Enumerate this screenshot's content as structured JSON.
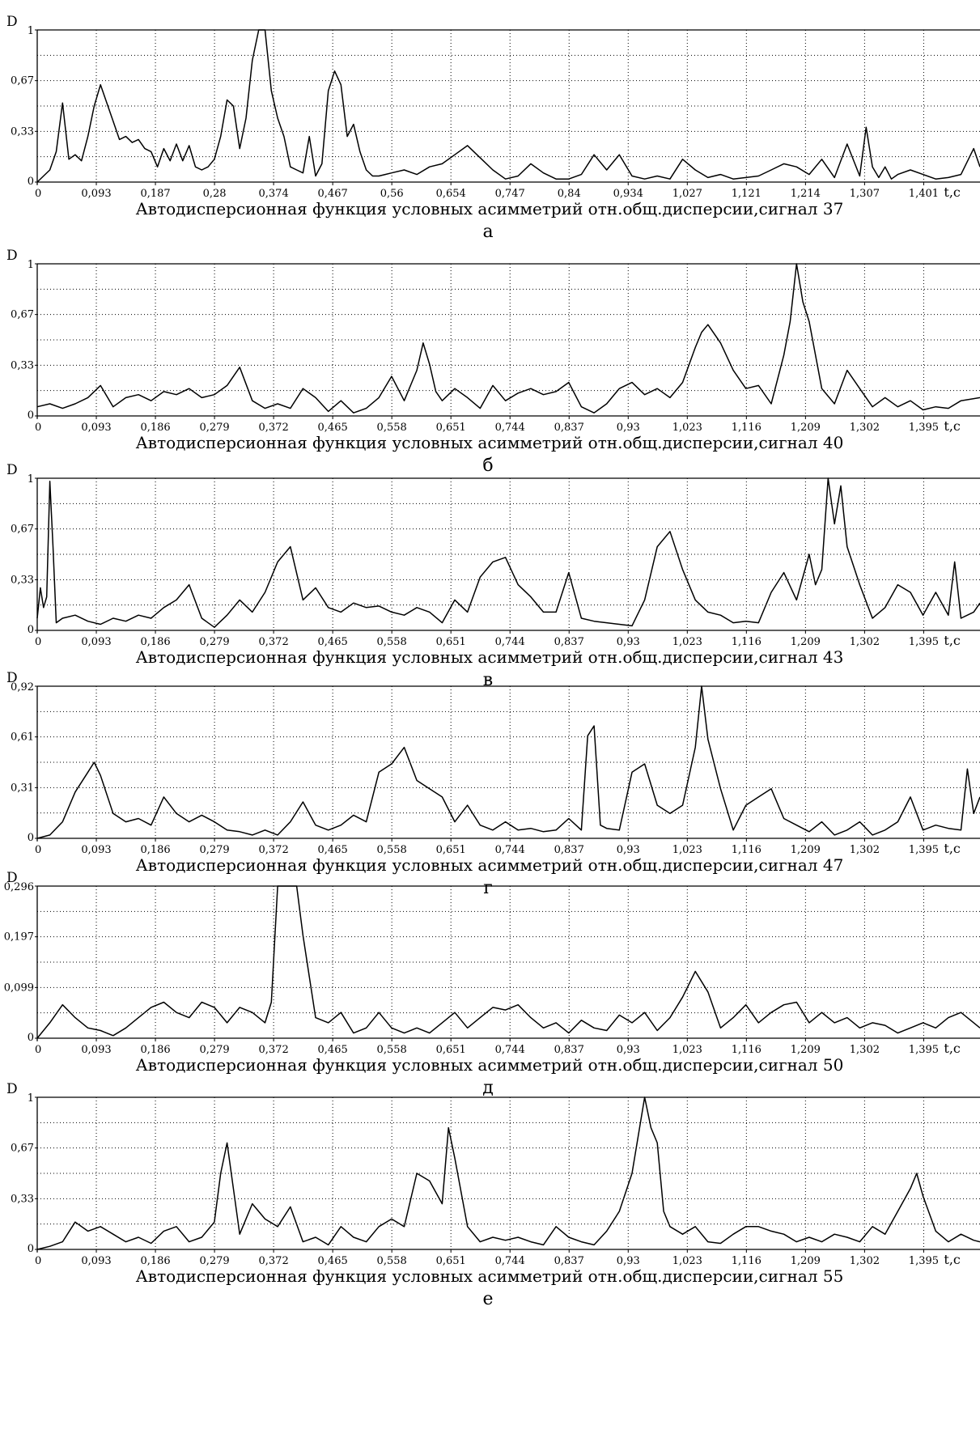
{
  "figure": {
    "background": "#ffffff",
    "line_color": "#000000",
    "grid_color": "#000000"
  },
  "chart_data": [
    {
      "type": "line",
      "ylabel": "D",
      "xlabel": "t,c",
      "caption": "Автодисперсионная функция условных асимметрий отн.общ.дисперсии,сигнал 37",
      "panel_label": "а",
      "xlim": [
        0,
        1.49
      ],
      "ylim": [
        0,
        1
      ],
      "xticks": [
        "0",
        "0,093",
        "0,187",
        "0,28",
        "0,374",
        "0,467",
        "0,56",
        "0,654",
        "0,747",
        "0,84",
        "0,934",
        "1,027",
        "1,121",
        "1,214",
        "1,307",
        "1,401"
      ],
      "yticks": [
        "0",
        "0,33",
        "0,67",
        "1"
      ],
      "grid": true,
      "x": [
        0,
        0.02,
        0.03,
        0.04,
        0.05,
        0.06,
        0.07,
        0.08,
        0.09,
        0.1,
        0.11,
        0.12,
        0.13,
        0.14,
        0.15,
        0.16,
        0.17,
        0.18,
        0.19,
        0.2,
        0.21,
        0.22,
        0.23,
        0.24,
        0.25,
        0.26,
        0.27,
        0.28,
        0.29,
        0.3,
        0.31,
        0.32,
        0.33,
        0.34,
        0.35,
        0.36,
        0.37,
        0.38,
        0.39,
        0.4,
        0.41,
        0.42,
        0.43,
        0.44,
        0.45,
        0.46,
        0.47,
        0.48,
        0.49,
        0.5,
        0.51,
        0.52,
        0.53,
        0.54,
        0.55,
        0.56,
        0.58,
        0.6,
        0.62,
        0.64,
        0.66,
        0.68,
        0.7,
        0.72,
        0.74,
        0.76,
        0.78,
        0.8,
        0.82,
        0.84,
        0.86,
        0.88,
        0.9,
        0.92,
        0.94,
        0.96,
        0.98,
        1.0,
        1.02,
        1.04,
        1.06,
        1.08,
        1.1,
        1.12,
        1.14,
        1.16,
        1.18,
        1.2,
        1.22,
        1.24,
        1.26,
        1.28,
        1.3,
        1.31,
        1.32,
        1.33,
        1.34,
        1.35,
        1.36,
        1.38,
        1.4,
        1.42,
        1.44,
        1.46,
        1.48,
        1.49
      ],
      "y": [
        0.0,
        0.08,
        0.2,
        0.52,
        0.15,
        0.18,
        0.14,
        0.3,
        0.5,
        0.64,
        0.52,
        0.4,
        0.28,
        0.3,
        0.26,
        0.28,
        0.22,
        0.2,
        0.1,
        0.22,
        0.14,
        0.25,
        0.14,
        0.24,
        0.1,
        0.08,
        0.1,
        0.15,
        0.3,
        0.54,
        0.5,
        0.22,
        0.42,
        0.8,
        1.0,
        1.0,
        0.6,
        0.42,
        0.3,
        0.1,
        0.08,
        0.06,
        0.3,
        0.04,
        0.12,
        0.6,
        0.73,
        0.64,
        0.3,
        0.38,
        0.2,
        0.08,
        0.04,
        0.04,
        0.05,
        0.06,
        0.08,
        0.05,
        0.1,
        0.12,
        0.18,
        0.24,
        0.16,
        0.08,
        0.02,
        0.04,
        0.12,
        0.06,
        0.02,
        0.02,
        0.05,
        0.18,
        0.08,
        0.18,
        0.04,
        0.02,
        0.04,
        0.02,
        0.15,
        0.08,
        0.03,
        0.05,
        0.02,
        0.03,
        0.04,
        0.08,
        0.12,
        0.1,
        0.05,
        0.15,
        0.03,
        0.25,
        0.04,
        0.36,
        0.1,
        0.03,
        0.1,
        0.02,
        0.05,
        0.08,
        0.05,
        0.02,
        0.03,
        0.05,
        0.22,
        0.1
      ]
    },
    {
      "type": "line",
      "ylabel": "D",
      "xlabel": "t,c",
      "caption": "Автодисперсионная функция условных асимметрий отн.общ.дисперсии,сигнал 40",
      "panel_label": "б",
      "xlim": [
        0,
        1.49
      ],
      "ylim": [
        0,
        1
      ],
      "xticks": [
        "0",
        "0,093",
        "0,186",
        "0,279",
        "0,372",
        "0,465",
        "0,558",
        "0,651",
        "0,744",
        "0,837",
        "0,93",
        "1,023",
        "1,116",
        "1,209",
        "1,302",
        "1,395"
      ],
      "yticks": [
        "0",
        "0,33",
        "0,67",
        "1"
      ],
      "grid": true,
      "x": [
        0,
        0.02,
        0.04,
        0.06,
        0.08,
        0.1,
        0.12,
        0.14,
        0.16,
        0.18,
        0.2,
        0.22,
        0.24,
        0.26,
        0.28,
        0.3,
        0.32,
        0.34,
        0.36,
        0.38,
        0.4,
        0.42,
        0.44,
        0.46,
        0.48,
        0.5,
        0.52,
        0.54,
        0.56,
        0.58,
        0.6,
        0.61,
        0.62,
        0.63,
        0.64,
        0.66,
        0.68,
        0.7,
        0.72,
        0.74,
        0.76,
        0.78,
        0.8,
        0.82,
        0.84,
        0.86,
        0.88,
        0.9,
        0.92,
        0.94,
        0.96,
        0.98,
        1.0,
        1.02,
        1.04,
        1.05,
        1.06,
        1.08,
        1.1,
        1.12,
        1.14,
        1.16,
        1.18,
        1.19,
        1.2,
        1.21,
        1.22,
        1.24,
        1.26,
        1.28,
        1.3,
        1.32,
        1.34,
        1.36,
        1.38,
        1.4,
        1.42,
        1.44,
        1.46,
        1.49
      ],
      "y": [
        0.06,
        0.08,
        0.05,
        0.08,
        0.12,
        0.2,
        0.06,
        0.12,
        0.14,
        0.1,
        0.16,
        0.14,
        0.18,
        0.12,
        0.14,
        0.2,
        0.32,
        0.1,
        0.05,
        0.08,
        0.05,
        0.18,
        0.12,
        0.03,
        0.1,
        0.02,
        0.05,
        0.12,
        0.26,
        0.1,
        0.3,
        0.48,
        0.34,
        0.16,
        0.1,
        0.18,
        0.12,
        0.05,
        0.2,
        0.1,
        0.15,
        0.18,
        0.14,
        0.16,
        0.22,
        0.06,
        0.02,
        0.08,
        0.18,
        0.22,
        0.14,
        0.18,
        0.12,
        0.22,
        0.45,
        0.55,
        0.6,
        0.48,
        0.3,
        0.18,
        0.2,
        0.08,
        0.4,
        0.62,
        1.0,
        0.75,
        0.62,
        0.18,
        0.08,
        0.3,
        0.18,
        0.06,
        0.12,
        0.06,
        0.1,
        0.04,
        0.06,
        0.05,
        0.1,
        0.12
      ]
    },
    {
      "type": "line",
      "ylabel": "D",
      "xlabel": "t,c",
      "caption": "Автодисперсионная функция условных асимметрий отн.общ.дисперсии,сигнал 43",
      "panel_label": "в",
      "xlim": [
        0,
        1.49
      ],
      "ylim": [
        0,
        1
      ],
      "xticks": [
        "0",
        "0,093",
        "0,186",
        "0,279",
        "0,372",
        "0,465",
        "0,558",
        "0,651",
        "0,744",
        "0,837",
        "0,93",
        "1,023",
        "1,116",
        "1,209",
        "1,302",
        "1,395"
      ],
      "yticks": [
        "0",
        "0,33",
        "0,67",
        "1"
      ],
      "grid": true,
      "x": [
        0,
        0.005,
        0.01,
        0.015,
        0.02,
        0.025,
        0.03,
        0.04,
        0.06,
        0.08,
        0.1,
        0.12,
        0.14,
        0.16,
        0.18,
        0.2,
        0.22,
        0.24,
        0.26,
        0.28,
        0.3,
        0.32,
        0.34,
        0.36,
        0.38,
        0.4,
        0.42,
        0.44,
        0.46,
        0.48,
        0.5,
        0.52,
        0.54,
        0.56,
        0.58,
        0.6,
        0.62,
        0.64,
        0.66,
        0.68,
        0.7,
        0.72,
        0.74,
        0.76,
        0.78,
        0.8,
        0.82,
        0.84,
        0.86,
        0.88,
        0.9,
        0.92,
        0.94,
        0.96,
        0.98,
        1.0,
        1.02,
        1.04,
        1.06,
        1.08,
        1.1,
        1.12,
        1.14,
        1.16,
        1.18,
        1.2,
        1.22,
        1.23,
        1.24,
        1.25,
        1.26,
        1.27,
        1.28,
        1.3,
        1.32,
        1.34,
        1.36,
        1.38,
        1.4,
        1.42,
        1.44,
        1.45,
        1.46,
        1.48,
        1.49
      ],
      "y": [
        0.08,
        0.28,
        0.15,
        0.22,
        0.98,
        0.55,
        0.05,
        0.08,
        0.1,
        0.06,
        0.04,
        0.08,
        0.06,
        0.1,
        0.08,
        0.15,
        0.2,
        0.3,
        0.08,
        0.02,
        0.1,
        0.2,
        0.12,
        0.25,
        0.45,
        0.55,
        0.2,
        0.28,
        0.15,
        0.12,
        0.18,
        0.15,
        0.16,
        0.12,
        0.1,
        0.15,
        0.12,
        0.05,
        0.2,
        0.12,
        0.35,
        0.45,
        0.48,
        0.3,
        0.22,
        0.12,
        0.12,
        0.38,
        0.08,
        0.06,
        0.05,
        0.04,
        0.03,
        0.2,
        0.55,
        0.65,
        0.4,
        0.2,
        0.12,
        0.1,
        0.05,
        0.06,
        0.05,
        0.25,
        0.38,
        0.2,
        0.5,
        0.3,
        0.4,
        1.0,
        0.7,
        0.95,
        0.55,
        0.3,
        0.08,
        0.15,
        0.3,
        0.25,
        0.1,
        0.25,
        0.1,
        0.45,
        0.08,
        0.12,
        0.18
      ]
    },
    {
      "type": "line",
      "ylabel": "D",
      "xlabel": "t,c",
      "caption": "Автодисперсионная функция условных асимметрий отн.общ.дисперсии,сигнал 47",
      "panel_label": "г",
      "xlim": [
        0,
        1.49
      ],
      "ylim": [
        0,
        0.92
      ],
      "xticks": [
        "0",
        "0,093",
        "0,186",
        "0,279",
        "0,372",
        "0,465",
        "0,558",
        "0,651",
        "0,744",
        "0,837",
        "0,93",
        "1,023",
        "1,116",
        "1,209",
        "1,302",
        "1,395"
      ],
      "yticks": [
        "0",
        "0,31",
        "0,61",
        "0,92"
      ],
      "grid": true,
      "x": [
        0,
        0.02,
        0.04,
        0.06,
        0.08,
        0.09,
        0.1,
        0.12,
        0.14,
        0.16,
        0.18,
        0.2,
        0.22,
        0.24,
        0.26,
        0.28,
        0.3,
        0.32,
        0.34,
        0.36,
        0.38,
        0.4,
        0.42,
        0.44,
        0.46,
        0.48,
        0.5,
        0.52,
        0.54,
        0.56,
        0.58,
        0.6,
        0.62,
        0.64,
        0.66,
        0.68,
        0.7,
        0.72,
        0.74,
        0.76,
        0.78,
        0.8,
        0.82,
        0.84,
        0.86,
        0.87,
        0.88,
        0.89,
        0.9,
        0.92,
        0.94,
        0.96,
        0.98,
        1.0,
        1.02,
        1.04,
        1.05,
        1.06,
        1.08,
        1.1,
        1.12,
        1.14,
        1.16,
        1.18,
        1.2,
        1.22,
        1.24,
        1.26,
        1.28,
        1.3,
        1.32,
        1.34,
        1.36,
        1.38,
        1.4,
        1.42,
        1.44,
        1.46,
        1.47,
        1.48,
        1.49
      ],
      "y": [
        0.0,
        0.02,
        0.1,
        0.28,
        0.4,
        0.46,
        0.38,
        0.15,
        0.1,
        0.12,
        0.08,
        0.25,
        0.15,
        0.1,
        0.14,
        0.1,
        0.05,
        0.04,
        0.02,
        0.05,
        0.02,
        0.1,
        0.22,
        0.08,
        0.05,
        0.08,
        0.14,
        0.1,
        0.4,
        0.45,
        0.55,
        0.35,
        0.3,
        0.25,
        0.1,
        0.2,
        0.08,
        0.05,
        0.1,
        0.05,
        0.06,
        0.04,
        0.05,
        0.12,
        0.05,
        0.62,
        0.68,
        0.08,
        0.06,
        0.05,
        0.4,
        0.45,
        0.2,
        0.15,
        0.2,
        0.55,
        0.92,
        0.6,
        0.3,
        0.05,
        0.2,
        0.25,
        0.3,
        0.12,
        0.08,
        0.04,
        0.1,
        0.02,
        0.05,
        0.1,
        0.02,
        0.05,
        0.1,
        0.25,
        0.05,
        0.08,
        0.06,
        0.05,
        0.42,
        0.15,
        0.25
      ]
    },
    {
      "type": "line",
      "ylabel": "D",
      "xlabel": "t,c",
      "caption": "Автодисперсионная функция условных асимметрий отн.общ.дисперсии,сигнал 50",
      "panel_label": "д",
      "xlim": [
        0,
        1.49
      ],
      "ylim": [
        0,
        0.296
      ],
      "xticks": [
        "0",
        "0,093",
        "0,186",
        "0,279",
        "0,372",
        "0,465",
        "0,558",
        "0,651",
        "0,744",
        "0,837",
        "0,93",
        "1,023",
        "1,116",
        "1,209",
        "1,302",
        "1,395"
      ],
      "yticks": [
        "0",
        "0,099",
        "0,197",
        "0,296"
      ],
      "grid": true,
      "x": [
        0,
        0.02,
        0.04,
        0.06,
        0.08,
        0.1,
        0.12,
        0.14,
        0.16,
        0.18,
        0.2,
        0.22,
        0.24,
        0.26,
        0.28,
        0.3,
        0.32,
        0.34,
        0.36,
        0.37,
        0.38,
        0.39,
        0.4,
        0.41,
        0.42,
        0.44,
        0.46,
        0.48,
        0.5,
        0.52,
        0.54,
        0.56,
        0.58,
        0.6,
        0.62,
        0.64,
        0.66,
        0.68,
        0.7,
        0.72,
        0.74,
        0.76,
        0.78,
        0.8,
        0.82,
        0.84,
        0.86,
        0.88,
        0.9,
        0.92,
        0.94,
        0.96,
        0.98,
        1.0,
        1.02,
        1.04,
        1.06,
        1.08,
        1.1,
        1.12,
        1.14,
        1.16,
        1.18,
        1.2,
        1.22,
        1.24,
        1.26,
        1.28,
        1.3,
        1.32,
        1.34,
        1.36,
        1.38,
        1.4,
        1.42,
        1.44,
        1.46,
        1.48,
        1.49
      ],
      "y": [
        0.0,
        0.03,
        0.065,
        0.04,
        0.02,
        0.015,
        0.005,
        0.02,
        0.04,
        0.06,
        0.07,
        0.05,
        0.04,
        0.07,
        0.06,
        0.03,
        0.06,
        0.05,
        0.03,
        0.07,
        0.296,
        0.296,
        0.296,
        0.296,
        0.2,
        0.04,
        0.03,
        0.05,
        0.01,
        0.02,
        0.05,
        0.02,
        0.01,
        0.02,
        0.01,
        0.03,
        0.05,
        0.02,
        0.04,
        0.06,
        0.055,
        0.065,
        0.04,
        0.02,
        0.03,
        0.01,
        0.035,
        0.02,
        0.015,
        0.045,
        0.03,
        0.05,
        0.015,
        0.04,
        0.08,
        0.13,
        0.09,
        0.02,
        0.04,
        0.065,
        0.03,
        0.05,
        0.065,
        0.07,
        0.03,
        0.05,
        0.03,
        0.04,
        0.02,
        0.03,
        0.025,
        0.01,
        0.02,
        0.03,
        0.02,
        0.04,
        0.05,
        0.03,
        0.02
      ]
    },
    {
      "type": "line",
      "ylabel": "D",
      "xlabel": "t,c",
      "caption": "Автодисперсионная функция условных асимметрий отн.общ.дисперсии,сигнал 55",
      "panel_label": "е",
      "xlim": [
        0,
        1.49
      ],
      "ylim": [
        0,
        1
      ],
      "xticks": [
        "0",
        "0,093",
        "0,186",
        "0,279",
        "0,372",
        "0,465",
        "0,558",
        "0,651",
        "0,744",
        "0,837",
        "0,93",
        "1,023",
        "1,116",
        "1,209",
        "1,302",
        "1,395"
      ],
      "yticks": [
        "0",
        "0,33",
        "0,67",
        "1"
      ],
      "grid": true,
      "x": [
        0,
        0.02,
        0.04,
        0.06,
        0.08,
        0.1,
        0.12,
        0.14,
        0.16,
        0.18,
        0.2,
        0.22,
        0.24,
        0.26,
        0.28,
        0.29,
        0.3,
        0.31,
        0.32,
        0.34,
        0.36,
        0.38,
        0.4,
        0.42,
        0.44,
        0.46,
        0.48,
        0.5,
        0.52,
        0.54,
        0.56,
        0.58,
        0.6,
        0.62,
        0.64,
        0.65,
        0.66,
        0.68,
        0.7,
        0.72,
        0.74,
        0.76,
        0.78,
        0.8,
        0.82,
        0.84,
        0.86,
        0.88,
        0.9,
        0.92,
        0.94,
        0.96,
        0.97,
        0.98,
        0.99,
        1.0,
        1.02,
        1.04,
        1.06,
        1.08,
        1.1,
        1.12,
        1.14,
        1.16,
        1.18,
        1.2,
        1.22,
        1.24,
        1.26,
        1.28,
        1.3,
        1.32,
        1.34,
        1.36,
        1.38,
        1.39,
        1.4,
        1.42,
        1.44,
        1.46,
        1.48,
        1.49
      ],
      "y": [
        0.0,
        0.02,
        0.05,
        0.18,
        0.12,
        0.15,
        0.1,
        0.05,
        0.08,
        0.04,
        0.12,
        0.15,
        0.05,
        0.08,
        0.18,
        0.5,
        0.7,
        0.4,
        0.1,
        0.3,
        0.2,
        0.15,
        0.28,
        0.05,
        0.08,
        0.03,
        0.15,
        0.08,
        0.05,
        0.15,
        0.2,
        0.15,
        0.5,
        0.45,
        0.3,
        0.8,
        0.6,
        0.15,
        0.05,
        0.08,
        0.06,
        0.08,
        0.05,
        0.03,
        0.15,
        0.08,
        0.05,
        0.03,
        0.12,
        0.25,
        0.5,
        1.0,
        0.8,
        0.7,
        0.25,
        0.15,
        0.1,
        0.15,
        0.05,
        0.04,
        0.1,
        0.15,
        0.15,
        0.12,
        0.1,
        0.05,
        0.08,
        0.05,
        0.1,
        0.08,
        0.05,
        0.15,
        0.1,
        0.25,
        0.4,
        0.5,
        0.35,
        0.12,
        0.05,
        0.1,
        0.06,
        0.05
      ]
    }
  ]
}
